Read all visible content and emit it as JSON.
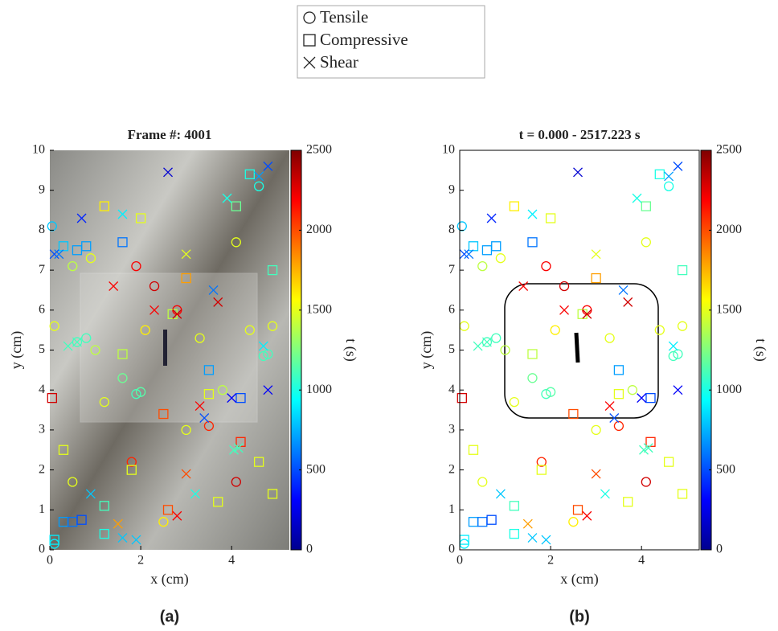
{
  "chart_data": [
    {
      "type": "scatter",
      "title": "Frame #: 4001",
      "xlabel": "x (cm)",
      "ylabel": "y (cm)",
      "panel_label": "(a)",
      "xlim": [
        0,
        5.27
      ],
      "xticks": [
        0,
        2,
        4
      ],
      "ylim": [
        0,
        10
      ],
      "yticks": [
        0,
        1,
        2,
        3,
        4,
        5,
        6,
        7,
        8,
        9,
        10
      ],
      "colorbar": {
        "label": "t (s)",
        "lim": [
          0,
          2500
        ],
        "ticks": [
          0,
          500,
          1000,
          1500,
          2000,
          2500
        ],
        "colormap": "jet"
      },
      "series": [
        {
          "name": "Tensile",
          "marker": "circle",
          "x": [
            0.05,
            0.1,
            0.5,
            0.9,
            1.0,
            1.9,
            1.6,
            1.9,
            2.0,
            2.3,
            2.8,
            3.0,
            3.3,
            3.8,
            4.1,
            4.4,
            4.6,
            4.7,
            4.8,
            4.1,
            1.8,
            0.5,
            0.1,
            2.5,
            3.5,
            0.6,
            0.8,
            2.1,
            1.2,
            4.9
          ],
          "y": [
            8.1,
            5.6,
            7.1,
            7.3,
            5.0,
            7.1,
            4.3,
            3.9,
            3.95,
            6.6,
            6.0,
            3.0,
            5.3,
            4.0,
            7.7,
            5.5,
            9.1,
            4.85,
            4.9,
            1.7,
            2.2,
            1.7,
            0.15,
            0.7,
            3.1,
            5.2,
            5.3,
            5.5,
            3.7,
            5.6
          ],
          "t": [
            800,
            1500,
            1400,
            1500,
            1400,
            2200,
            1200,
            1100,
            1150,
            2300,
            2200,
            1500,
            1500,
            1400,
            1500,
            1500,
            1000,
            1100,
            1100,
            2300,
            2100,
            1500,
            900,
            1600,
            2100,
            1100,
            1100,
            1600,
            1500,
            1500
          ]
        },
        {
          "name": "Compressive",
          "marker": "square",
          "x": [
            0.1,
            0.3,
            0.5,
            0.7,
            1.2,
            1.2,
            0.3,
            0.6,
            0.8,
            1.6,
            2.0,
            4.4,
            4.1,
            4.9,
            3.5,
            4.2,
            3.0,
            2.7,
            1.6,
            2.5,
            3.5,
            4.2,
            4.6,
            0.3,
            1.8,
            2.6,
            3.7,
            4.9,
            1.2,
            0.05
          ],
          "y": [
            0.25,
            0.7,
            0.7,
            0.75,
            1.1,
            0.4,
            7.6,
            7.5,
            7.6,
            7.7,
            8.3,
            9.4,
            8.6,
            7.0,
            4.5,
            3.8,
            6.8,
            5.9,
            4.9,
            3.4,
            3.9,
            2.7,
            2.2,
            2.5,
            2.0,
            1.0,
            1.2,
            1.4,
            8.6,
            3.8
          ],
          "t": [
            900,
            700,
            600,
            500,
            1100,
            1000,
            800,
            700,
            700,
            600,
            1500,
            1000,
            1200,
            1100,
            700,
            500,
            1800,
            1400,
            1400,
            2000,
            1500,
            2100,
            1500,
            1500,
            1500,
            2000,
            1500,
            1500,
            1600,
            2300
          ]
        },
        {
          "name": "Shear",
          "marker": "x",
          "x": [
            0.1,
            0.2,
            0.7,
            1.6,
            2.6,
            4.6,
            4.8,
            3.9,
            3.6,
            3.3,
            3.4,
            4.0,
            4.7,
            4.8,
            4.15,
            4.05,
            0.6,
            0.4,
            1.6,
            1.9,
            0.9,
            3.2,
            1.5,
            2.8,
            3.0,
            2.8,
            3.7,
            1.4,
            2.3,
            3.0
          ],
          "y": [
            7.4,
            7.4,
            8.3,
            8.4,
            9.45,
            9.35,
            9.6,
            8.8,
            6.5,
            3.6,
            3.3,
            3.8,
            5.1,
            4.0,
            2.55,
            2.5,
            5.2,
            5.1,
            0.3,
            0.25,
            1.4,
            1.4,
            0.65,
            0.85,
            1.9,
            5.9,
            6.2,
            6.6,
            6.0,
            7.4
          ],
          "t": [
            500,
            600,
            400,
            900,
            200,
            700,
            500,
            1000,
            600,
            2200,
            500,
            300,
            900,
            300,
            1100,
            1100,
            1100,
            1100,
            800,
            800,
            800,
            1000,
            1800,
            2200,
            2000,
            2300,
            2300,
            2200,
            2200,
            1500
          ]
        }
      ]
    },
    {
      "type": "scatter",
      "title": "t = 0.000 - 2517.223 s",
      "xlabel": "x (cm)",
      "ylabel": "y (cm)",
      "panel_label": "(b)",
      "xlim": [
        0,
        5.27
      ],
      "xticks": [
        0,
        2,
        4
      ],
      "ylim": [
        0,
        10
      ],
      "yticks": [
        0,
        1,
        2,
        3,
        4,
        5,
        6,
        7,
        8,
        9,
        10
      ],
      "colorbar": {
        "label": "t (s)",
        "lim": [
          0,
          2500
        ],
        "ticks": [
          0,
          500,
          1000,
          1500,
          2000,
          2500
        ],
        "colormap": "jet"
      },
      "series": [
        {
          "name": "Tensile",
          "marker": "circle",
          "x": [
            0.05,
            0.1,
            0.5,
            0.9,
            1.0,
            1.9,
            1.6,
            1.9,
            2.0,
            2.3,
            2.8,
            3.0,
            3.3,
            3.8,
            4.1,
            4.4,
            4.6,
            4.7,
            4.8,
            4.1,
            1.8,
            0.5,
            0.1,
            2.5,
            3.5,
            0.6,
            0.8,
            2.1,
            1.2,
            4.9
          ],
          "y": [
            8.1,
            5.6,
            7.1,
            7.3,
            5.0,
            7.1,
            4.3,
            3.9,
            3.95,
            6.6,
            6.0,
            3.0,
            5.3,
            4.0,
            7.7,
            5.5,
            9.1,
            4.85,
            4.9,
            1.7,
            2.2,
            1.7,
            0.15,
            0.7,
            3.1,
            5.2,
            5.3,
            5.5,
            3.7,
            5.6
          ],
          "t": [
            800,
            1500,
            1400,
            1500,
            1400,
            2200,
            1200,
            1100,
            1150,
            2300,
            2200,
            1500,
            1500,
            1400,
            1500,
            1500,
            1000,
            1100,
            1100,
            2300,
            2100,
            1500,
            900,
            1600,
            2100,
            1100,
            1100,
            1600,
            1500,
            1500
          ]
        },
        {
          "name": "Compressive",
          "marker": "square",
          "x": [
            0.1,
            0.3,
            0.5,
            0.7,
            1.2,
            1.2,
            0.3,
            0.6,
            0.8,
            1.6,
            2.0,
            4.4,
            4.1,
            4.9,
            3.5,
            4.2,
            3.0,
            2.7,
            1.6,
            2.5,
            3.5,
            4.2,
            4.6,
            0.3,
            1.8,
            2.6,
            3.7,
            4.9,
            1.2,
            0.05
          ],
          "y": [
            0.25,
            0.7,
            0.7,
            0.75,
            1.1,
            0.4,
            7.6,
            7.5,
            7.6,
            7.7,
            8.3,
            9.4,
            8.6,
            7.0,
            4.5,
            3.8,
            6.8,
            5.9,
            4.9,
            3.4,
            3.9,
            2.7,
            2.2,
            2.5,
            2.0,
            1.0,
            1.2,
            1.4,
            8.6,
            3.8
          ],
          "t": [
            900,
            700,
            600,
            500,
            1100,
            1000,
            800,
            700,
            700,
            600,
            1500,
            1000,
            1200,
            1100,
            700,
            500,
            1800,
            1400,
            1400,
            2000,
            1500,
            2100,
            1500,
            1500,
            1500,
            2000,
            1500,
            1500,
            1600,
            2300
          ]
        },
        {
          "name": "Shear",
          "marker": "x",
          "x": [
            0.1,
            0.2,
            0.7,
            1.6,
            2.6,
            4.6,
            4.8,
            3.9,
            3.6,
            3.3,
            3.4,
            4.0,
            4.7,
            4.8,
            4.15,
            4.05,
            0.6,
            0.4,
            1.6,
            1.9,
            0.9,
            3.2,
            1.5,
            2.8,
            3.0,
            2.8,
            3.7,
            1.4,
            2.3,
            3.0
          ],
          "y": [
            7.4,
            7.4,
            8.3,
            8.4,
            9.45,
            9.35,
            9.6,
            8.8,
            6.5,
            3.6,
            3.3,
            3.8,
            5.1,
            4.0,
            2.55,
            2.5,
            5.2,
            5.1,
            0.3,
            0.25,
            1.4,
            1.4,
            0.65,
            0.85,
            1.9,
            5.9,
            6.2,
            6.6,
            6.0,
            7.4
          ],
          "t": [
            500,
            600,
            400,
            900,
            200,
            700,
            500,
            1000,
            600,
            2200,
            500,
            300,
            900,
            300,
            1100,
            1100,
            1100,
            1100,
            800,
            800,
            800,
            1000,
            1800,
            2200,
            2000,
            2300,
            2300,
            2200,
            2200,
            1500
          ]
        }
      ]
    }
  ]
}
